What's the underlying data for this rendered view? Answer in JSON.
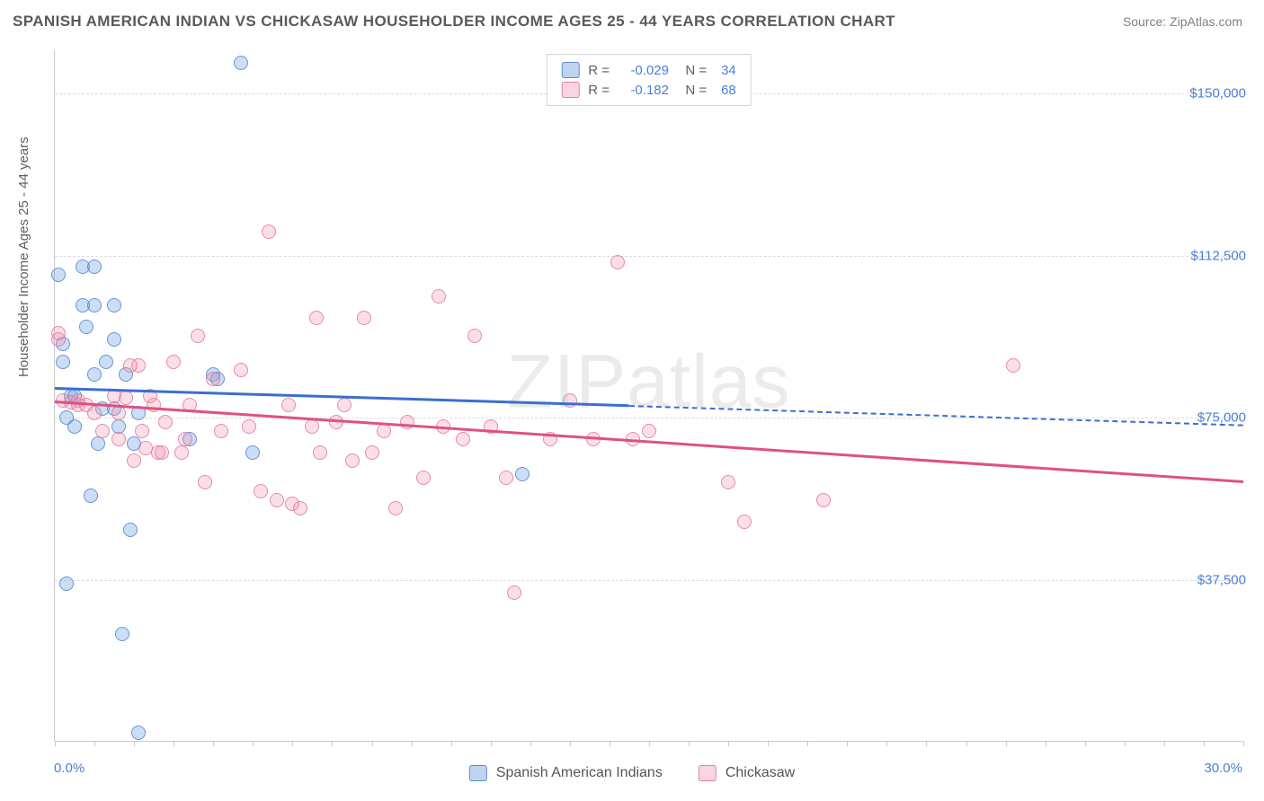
{
  "header": {
    "title": "SPANISH AMERICAN INDIAN VS CHICKASAW HOUSEHOLDER INCOME AGES 25 - 44 YEARS CORRELATION CHART",
    "source": "Source: ZipAtlas.com"
  },
  "chart": {
    "type": "scatter",
    "y_axis_label": "Householder Income Ages 25 - 44 years",
    "xlim": [
      0,
      30
    ],
    "ylim": [
      0,
      160000
    ],
    "x_left_label": "0.0%",
    "x_right_label": "30.0%",
    "y_ticks": [
      {
        "value": 37500,
        "label": "$37,500"
      },
      {
        "value": 75000,
        "label": "$75,000"
      },
      {
        "value": 112500,
        "label": "$112,500"
      },
      {
        "value": 150000,
        "label": "$150,000"
      }
    ],
    "x_tick_step": 1.0,
    "grid_color": "#dcdcdc",
    "background_color": "#ffffff",
    "watermark": "ZIPatlas",
    "series": [
      {
        "id": "a",
        "name": "Spanish American Indians",
        "color_fill": "rgba(110,160,225,0.35)",
        "color_stroke": "rgba(80,130,210,0.8)",
        "trend_color": "#3a6fd0",
        "correlation_r": "-0.029",
        "n": "34",
        "trend": {
          "x1": 0,
          "y1": 82000,
          "x2": 14.5,
          "y2": 78000,
          "extend_x": 30,
          "extend_y": 73500
        },
        "points": [
          {
            "x": 0.1,
            "y": 108000
          },
          {
            "x": 0.2,
            "y": 92000
          },
          {
            "x": 0.2,
            "y": 88000
          },
          {
            "x": 0.3,
            "y": 36500
          },
          {
            "x": 0.3,
            "y": 75000
          },
          {
            "x": 0.5,
            "y": 73000
          },
          {
            "x": 0.7,
            "y": 110000
          },
          {
            "x": 0.7,
            "y": 101000
          },
          {
            "x": 0.8,
            "y": 96000
          },
          {
            "x": 0.9,
            "y": 57000
          },
          {
            "x": 1.0,
            "y": 85000
          },
          {
            "x": 1.0,
            "y": 110000
          },
          {
            "x": 1.0,
            "y": 101000
          },
          {
            "x": 1.1,
            "y": 69000
          },
          {
            "x": 1.2,
            "y": 77000
          },
          {
            "x": 1.3,
            "y": 88000
          },
          {
            "x": 1.5,
            "y": 101000
          },
          {
            "x": 1.5,
            "y": 77000
          },
          {
            "x": 1.6,
            "y": 73000
          },
          {
            "x": 1.7,
            "y": 25000
          },
          {
            "x": 1.8,
            "y": 85000
          },
          {
            "x": 1.9,
            "y": 49000
          },
          {
            "x": 2.0,
            "y": 69000
          },
          {
            "x": 2.1,
            "y": 76000
          },
          {
            "x": 2.1,
            "y": 2000
          },
          {
            "x": 3.4,
            "y": 70000
          },
          {
            "x": 4.0,
            "y": 85000
          },
          {
            "x": 4.1,
            "y": 84000
          },
          {
            "x": 4.7,
            "y": 157000
          },
          {
            "x": 5.0,
            "y": 67000
          },
          {
            "x": 11.8,
            "y": 62000
          },
          {
            "x": 1.5,
            "y": 93000
          },
          {
            "x": 0.4,
            "y": 80000
          },
          {
            "x": 0.5,
            "y": 80000
          }
        ]
      },
      {
        "id": "b",
        "name": "Chickasaw",
        "color_fill": "rgba(240,150,175,0.3)",
        "color_stroke": "rgba(225,110,150,0.75)",
        "trend_color": "#e0517f",
        "correlation_r": "-0.182",
        "n": "68",
        "trend": {
          "x1": 0,
          "y1": 79000,
          "x2": 30,
          "y2": 60500
        },
        "points": [
          {
            "x": 0.1,
            "y": 93000
          },
          {
            "x": 0.1,
            "y": 94500
          },
          {
            "x": 0.2,
            "y": 79000
          },
          {
            "x": 0.4,
            "y": 78500
          },
          {
            "x": 0.6,
            "y": 79000
          },
          {
            "x": 0.6,
            "y": 78000
          },
          {
            "x": 0.8,
            "y": 78000
          },
          {
            "x": 1.0,
            "y": 76000
          },
          {
            "x": 1.2,
            "y": 72000
          },
          {
            "x": 1.5,
            "y": 80000
          },
          {
            "x": 1.6,
            "y": 76000
          },
          {
            "x": 1.6,
            "y": 70000
          },
          {
            "x": 1.8,
            "y": 79500
          },
          {
            "x": 2.0,
            "y": 65000
          },
          {
            "x": 2.1,
            "y": 87000
          },
          {
            "x": 2.3,
            "y": 68000
          },
          {
            "x": 2.4,
            "y": 80000
          },
          {
            "x": 2.6,
            "y": 67000
          },
          {
            "x": 2.7,
            "y": 67000
          },
          {
            "x": 2.8,
            "y": 74000
          },
          {
            "x": 3.0,
            "y": 88000
          },
          {
            "x": 3.2,
            "y": 67000
          },
          {
            "x": 3.3,
            "y": 70000
          },
          {
            "x": 3.4,
            "y": 78000
          },
          {
            "x": 3.8,
            "y": 60000
          },
          {
            "x": 4.0,
            "y": 84000
          },
          {
            "x": 4.2,
            "y": 72000
          },
          {
            "x": 4.7,
            "y": 86000
          },
          {
            "x": 4.9,
            "y": 73000
          },
          {
            "x": 5.2,
            "y": 58000
          },
          {
            "x": 5.4,
            "y": 118000
          },
          {
            "x": 5.6,
            "y": 56000
          },
          {
            "x": 5.9,
            "y": 78000
          },
          {
            "x": 6.0,
            "y": 55000
          },
          {
            "x": 6.2,
            "y": 54000
          },
          {
            "x": 6.5,
            "y": 73000
          },
          {
            "x": 6.6,
            "y": 98000
          },
          {
            "x": 6.7,
            "y": 67000
          },
          {
            "x": 7.1,
            "y": 74000
          },
          {
            "x": 7.3,
            "y": 78000
          },
          {
            "x": 7.5,
            "y": 65000
          },
          {
            "x": 7.8,
            "y": 98000
          },
          {
            "x": 8.0,
            "y": 67000
          },
          {
            "x": 8.3,
            "y": 72000
          },
          {
            "x": 8.6,
            "y": 54000
          },
          {
            "x": 8.9,
            "y": 74000
          },
          {
            "x": 9.3,
            "y": 61000
          },
          {
            "x": 9.7,
            "y": 103000
          },
          {
            "x": 9.8,
            "y": 73000
          },
          {
            "x": 10.3,
            "y": 70000
          },
          {
            "x": 10.6,
            "y": 94000
          },
          {
            "x": 11.0,
            "y": 73000
          },
          {
            "x": 11.4,
            "y": 61000
          },
          {
            "x": 11.6,
            "y": 34500
          },
          {
            "x": 12.5,
            "y": 70000
          },
          {
            "x": 13.0,
            "y": 79000
          },
          {
            "x": 13.6,
            "y": 70000
          },
          {
            "x": 14.2,
            "y": 111000
          },
          {
            "x": 14.6,
            "y": 70000
          },
          {
            "x": 15.0,
            "y": 72000
          },
          {
            "x": 17.0,
            "y": 60000
          },
          {
            "x": 17.4,
            "y": 51000
          },
          {
            "x": 19.4,
            "y": 56000
          },
          {
            "x": 24.2,
            "y": 87000
          },
          {
            "x": 3.6,
            "y": 94000
          },
          {
            "x": 2.2,
            "y": 72000
          },
          {
            "x": 2.5,
            "y": 78000
          },
          {
            "x": 1.9,
            "y": 87000
          }
        ]
      }
    ]
  },
  "legend": {
    "bottom": [
      {
        "swatch": "a",
        "label": "Spanish American Indians"
      },
      {
        "swatch": "b",
        "label": "Chickasaw"
      }
    ]
  }
}
